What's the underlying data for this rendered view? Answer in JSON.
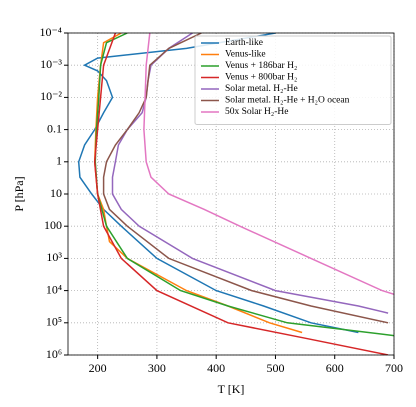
{
  "chart_data": {
    "type": "line",
    "xlabel": "T [K]",
    "ylabel": "P [hPa]",
    "xlim": [
      150,
      700
    ],
    "xticks": [
      200,
      300,
      400,
      500,
      600,
      700
    ],
    "ylim": [
      1000000,
      0.0001
    ],
    "yscale": "log",
    "yticks": [
      {
        "value": 0.0001,
        "label": "10⁻⁴"
      },
      {
        "value": 0.001,
        "label": "10⁻³"
      },
      {
        "value": 0.01,
        "label": "10⁻²"
      },
      0.1,
      1,
      10,
      100,
      {
        "value": 1000,
        "label": "10³"
      },
      {
        "value": 10000,
        "label": "10⁴"
      },
      {
        "value": 100000,
        "label": "10⁵"
      },
      {
        "value": 1000000,
        "label": "10⁶"
      }
    ],
    "grid": true,
    "legend": "upper right",
    "series": [
      {
        "name": "Earth-like",
        "color": "#1f77b4",
        "x": [
          500,
          350,
          200,
          178,
          200,
          215,
          225,
          210,
          195,
          178,
          168,
          170,
          190,
          210,
          240,
          300,
          400,
          480,
          560,
          640
        ],
        "values": [
          0.0001,
          0.0003,
          0.0006,
          0.001,
          0.0015,
          0.003,
          0.01,
          0.03,
          0.1,
          0.3,
          1,
          3,
          10,
          30,
          100,
          1000,
          10000,
          30000,
          100000,
          200000
        ]
      },
      {
        "name": "Venus-like",
        "color": "#ff7f0e",
        "x": [
          240,
          210,
          205,
          200,
          197,
          195,
          200,
          210,
          215,
          220,
          250,
          350,
          420,
          490,
          545
        ],
        "values": [
          0.0001,
          0.0002,
          0.001,
          0.01,
          0.1,
          1,
          10,
          30,
          100,
          300,
          1000,
          10000,
          30000,
          100000,
          200000
        ]
      },
      {
        "name": "Venus + 186bar H₂",
        "color": "#2ca02c",
        "x": [
          250,
          215,
          205,
          202,
          198,
          196,
          200,
          215,
          250,
          340,
          420,
          520,
          700
        ],
        "values": [
          0.0001,
          0.0002,
          0.001,
          0.01,
          0.1,
          1,
          10,
          100,
          1000,
          10000,
          30000,
          100000,
          250000
        ]
      },
      {
        "name": "Venus + 800bar H₂",
        "color": "#d62728",
        "x": [
          230,
          210,
          200,
          195,
          200,
          210,
          240,
          300,
          420,
          550,
          690
        ],
        "values": [
          0.0001,
          0.001,
          0.1,
          1,
          10,
          100,
          1000,
          10000,
          100000,
          300000,
          1000000
        ]
      },
      {
        "name": "Solar metal. H₂-He",
        "color": "#9467bd",
        "x": [
          360,
          320,
          290,
          285,
          282,
          275,
          250,
          235,
          230,
          225,
          225,
          240,
          270,
          360,
          500,
          640,
          690
        ],
        "values": [
          0.0001,
          0.0003,
          0.001,
          0.003,
          0.01,
          0.03,
          0.1,
          0.3,
          1,
          3,
          10,
          30,
          100,
          1000,
          10000,
          30000,
          50000
        ]
      },
      {
        "name": "Solar metal. H₂-He + H₂O ocean",
        "color": "#8c564b",
        "x": [
          375,
          320,
          288,
          282,
          270,
          250,
          230,
          215,
          210,
          210,
          220,
          250,
          320,
          460,
          560,
          690
        ],
        "values": [
          0.0001,
          0.0003,
          0.001,
          0.01,
          0.03,
          0.1,
          0.3,
          1,
          3,
          10,
          30,
          100,
          1000,
          10000,
          30000,
          100000
        ]
      },
      {
        "name": "50x Solar H₂-He",
        "color": "#e377c2",
        "x": [
          288,
          282,
          280,
          278,
          282,
          290,
          320,
          380,
          440,
          560,
          680,
          700
        ],
        "values": [
          0.0001,
          0.001,
          0.01,
          0.1,
          1,
          3,
          10,
          30,
          100,
          1000,
          10000,
          13000
        ]
      }
    ]
  }
}
